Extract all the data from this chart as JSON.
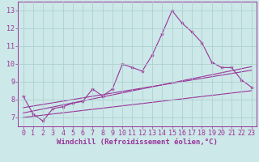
{
  "xlabel": "Windchill (Refroidissement éolien,°C)",
  "bg_color": "#cce8e8",
  "line_color": "#993399",
  "xlim": [
    -0.5,
    23.5
  ],
  "ylim": [
    6.5,
    13.5
  ],
  "yticks": [
    7,
    8,
    9,
    10,
    11,
    12,
    13
  ],
  "xticks": [
    0,
    1,
    2,
    3,
    4,
    5,
    6,
    7,
    8,
    9,
    10,
    11,
    12,
    13,
    14,
    15,
    16,
    17,
    18,
    19,
    20,
    21,
    22,
    23
  ],
  "series1_x": [
    0,
    1,
    2,
    3,
    4,
    5,
    6,
    7,
    8,
    9,
    10,
    11,
    12,
    13,
    14,
    15,
    16,
    17,
    18,
    19,
    20,
    21,
    22,
    23
  ],
  "series1_y": [
    8.2,
    7.2,
    6.8,
    7.5,
    7.6,
    7.8,
    7.9,
    8.6,
    8.2,
    8.6,
    10.0,
    9.8,
    9.6,
    10.5,
    11.7,
    13.0,
    12.3,
    11.8,
    11.2,
    10.1,
    9.8,
    9.8,
    9.1,
    8.7
  ],
  "series2_x": [
    0,
    23
  ],
  "series2_y": [
    7.55,
    9.65
  ],
  "series3_x": [
    0,
    23
  ],
  "series3_y": [
    7.25,
    9.85
  ],
  "series4_x": [
    0,
    23
  ],
  "series4_y": [
    7.0,
    8.5
  ],
  "grid_color": "#aacccc",
  "xlabel_fontsize": 6.5,
  "tick_fontsize": 6.0
}
